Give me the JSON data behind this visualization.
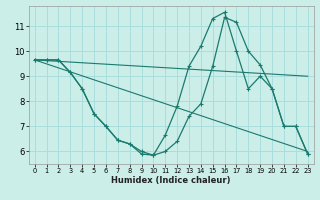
{
  "xlabel": "Humidex (Indice chaleur)",
  "bg_color": "#cceee8",
  "grid_color": "#aadddd",
  "line_color": "#1a7a6e",
  "xlim": [
    -0.5,
    23.5
  ],
  "ylim": [
    5.5,
    11.8
  ],
  "xticks": [
    0,
    1,
    2,
    3,
    4,
    5,
    6,
    7,
    8,
    9,
    10,
    11,
    12,
    13,
    14,
    15,
    16,
    17,
    18,
    19,
    20,
    21,
    22,
    23
  ],
  "yticks": [
    6,
    7,
    8,
    9,
    10,
    11
  ],
  "lines": [
    {
      "x": [
        0,
        1,
        2,
        3,
        4,
        5,
        6,
        7,
        8,
        9,
        10,
        11,
        12,
        13,
        14,
        15,
        16,
        17,
        18,
        19,
        20,
        21,
        22,
        23
      ],
      "y": [
        9.65,
        9.65,
        9.65,
        9.15,
        8.5,
        7.5,
        7.0,
        6.45,
        6.3,
        5.9,
        5.85,
        6.65,
        7.8,
        9.4,
        10.2,
        11.3,
        11.55,
        10.0,
        8.5,
        9.0,
        8.5,
        7.0,
        7.0,
        5.9
      ],
      "has_markers": true
    },
    {
      "x": [
        0,
        1,
        2,
        3,
        4,
        5,
        6,
        7,
        8,
        9,
        10,
        11,
        12,
        13,
        14,
        15,
        16,
        17,
        18,
        19,
        20,
        21,
        22,
        23
      ],
      "y": [
        9.65,
        9.65,
        9.65,
        9.15,
        8.5,
        7.5,
        7.0,
        6.45,
        6.3,
        6.0,
        5.85,
        6.0,
        6.4,
        7.4,
        7.9,
        9.4,
        11.35,
        11.15,
        10.0,
        9.45,
        8.5,
        7.0,
        7.0,
        5.9
      ],
      "has_markers": true
    },
    {
      "x": [
        0,
        23
      ],
      "y": [
        9.65,
        9.0
      ],
      "has_markers": false
    },
    {
      "x": [
        0,
        23
      ],
      "y": [
        9.65,
        6.0
      ],
      "has_markers": false
    }
  ]
}
